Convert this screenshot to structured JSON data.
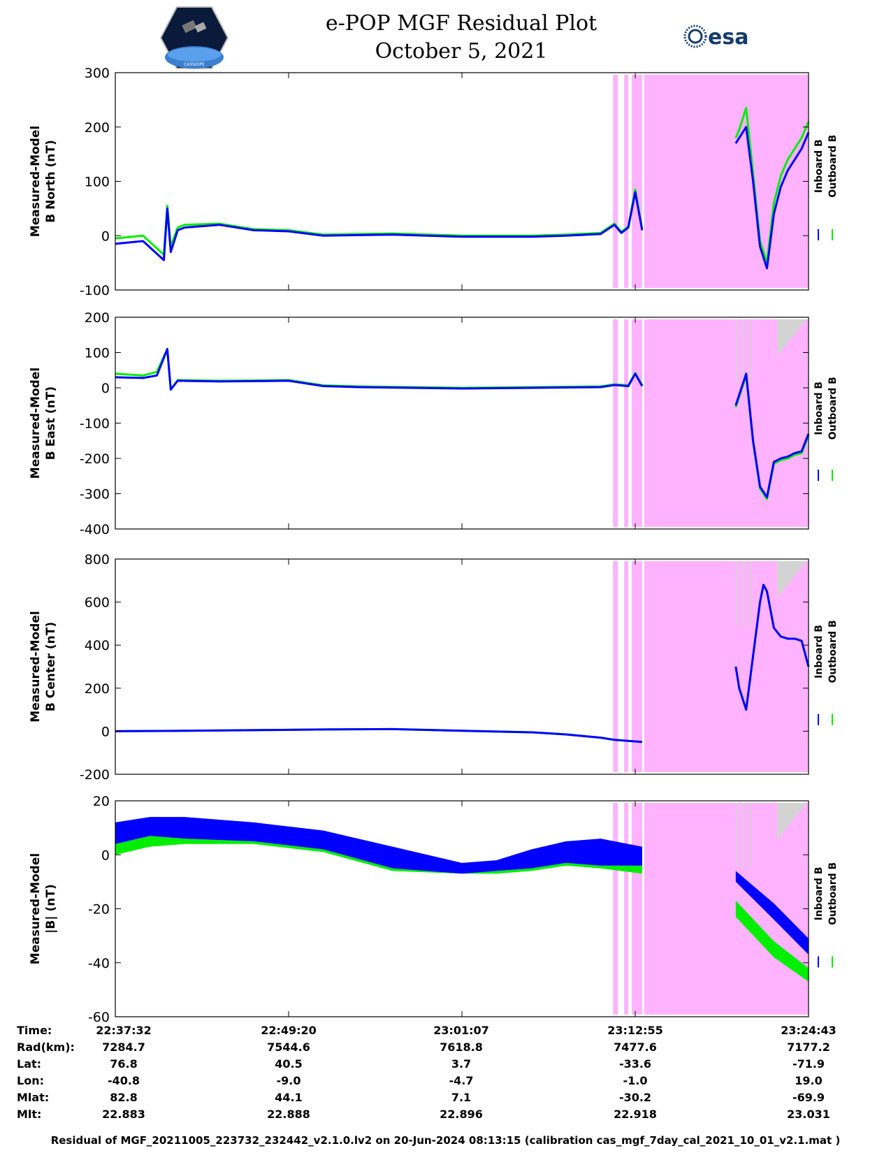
{
  "header": {
    "title_line1": "e-POP MGF Residual Plot",
    "title_line2": "October 5, 2021",
    "logo_left": "CASSIOPE",
    "logo_right": "esa"
  },
  "colors": {
    "inboard": "#0000ff",
    "outboard": "#00ee00",
    "gap_shading": "#ffb3ff",
    "gray_shading": "#d3d3d3"
  },
  "legend": {
    "inboard": "Inboard B",
    "outboard": "Outboard B"
  },
  "chart_data": [
    {
      "type": "line",
      "ylabel": [
        "Measured-Model",
        "B North (nT)"
      ],
      "ylim": [
        -100,
        300
      ],
      "yticks": [
        300,
        200,
        100,
        0,
        -100
      ],
      "x_range_frac": [
        0,
        1
      ],
      "series": [
        {
          "name": "Inboard B",
          "x": [
            0,
            0.04,
            0.07,
            0.075,
            0.08,
            0.09,
            0.1,
            0.15,
            0.2,
            0.25,
            0.3,
            0.4,
            0.5,
            0.6,
            0.65,
            0.7,
            0.72,
            0.73,
            0.74,
            0.75,
            0.76
          ],
          "y": [
            -15,
            -10,
            -45,
            50,
            -30,
            10,
            15,
            20,
            10,
            8,
            0,
            2,
            -2,
            -2,
            0,
            3,
            20,
            5,
            15,
            80,
            10
          ]
        },
        {
          "name": "Outboard B",
          "x": [
            0,
            0.04,
            0.07,
            0.075,
            0.08,
            0.09,
            0.1,
            0.15,
            0.2,
            0.25,
            0.3,
            0.4,
            0.5,
            0.6,
            0.65,
            0.7,
            0.72,
            0.73,
            0.74,
            0.75,
            0.76
          ],
          "y": [
            -5,
            0,
            -35,
            55,
            -20,
            15,
            20,
            22,
            12,
            10,
            2,
            4,
            0,
            0,
            2,
            5,
            22,
            7,
            17,
            85,
            12
          ]
        }
      ],
      "series_late": [
        {
          "name": "Inboard B",
          "x": [
            0.895,
            0.9,
            0.91,
            0.92,
            0.93,
            0.94,
            0.95,
            0.96,
            0.97,
            0.98,
            0.99,
            1.0
          ],
          "y": [
            170,
            180,
            200,
            100,
            -20,
            -60,
            40,
            90,
            120,
            140,
            160,
            190
          ]
        },
        {
          "name": "Outboard B",
          "x": [
            0.895,
            0.9,
            0.91,
            0.92,
            0.93,
            0.94,
            0.95,
            0.96,
            0.97,
            0.98,
            0.99,
            1.0
          ],
          "y": [
            180,
            195,
            235,
            115,
            -10,
            -50,
            60,
            110,
            140,
            160,
            180,
            210
          ]
        }
      ]
    },
    {
      "type": "line",
      "ylabel": [
        "Measured-Model",
        "B East (nT)"
      ],
      "ylim": [
        -400,
        200
      ],
      "yticks": [
        200,
        100,
        0,
        -100,
        -200,
        -300,
        -400
      ],
      "series": [
        {
          "name": "Inboard B",
          "x": [
            0,
            0.04,
            0.06,
            0.075,
            0.08,
            0.09,
            0.15,
            0.25,
            0.3,
            0.35,
            0.5,
            0.7,
            0.72,
            0.74,
            0.75,
            0.76
          ],
          "y": [
            30,
            28,
            35,
            110,
            -5,
            20,
            18,
            20,
            5,
            2,
            -2,
            2,
            8,
            5,
            40,
            5
          ]
        },
        {
          "name": "Outboard B",
          "x": [
            0,
            0.04,
            0.06,
            0.075,
            0.08,
            0.09,
            0.15,
            0.25,
            0.3,
            0.35,
            0.5,
            0.7,
            0.72,
            0.74,
            0.75,
            0.76
          ],
          "y": [
            40,
            35,
            45,
            110,
            -5,
            22,
            20,
            22,
            7,
            4,
            0,
            4,
            10,
            7,
            42,
            7
          ]
        }
      ],
      "series_late": [
        {
          "name": "Inboard B",
          "x": [
            0.895,
            0.905,
            0.91,
            0.92,
            0.93,
            0.94,
            0.95,
            0.96,
            0.97,
            0.98,
            0.99,
            1.0
          ],
          "y": [
            -50,
            10,
            40,
            -150,
            -280,
            -310,
            -210,
            -200,
            -195,
            -185,
            -180,
            -130
          ]
        },
        {
          "name": "Outboard B",
          "x": [
            0.895,
            0.905,
            0.91,
            0.92,
            0.93,
            0.94,
            0.95,
            0.96,
            0.97,
            0.98,
            0.99,
            1.0
          ],
          "y": [
            -55,
            5,
            35,
            -155,
            -285,
            -315,
            -215,
            -205,
            -200,
            -190,
            -185,
            -135
          ]
        }
      ]
    },
    {
      "type": "line",
      "ylabel": [
        "Measured-Model",
        "B Center (nT)"
      ],
      "ylim": [
        -200,
        800
      ],
      "yticks": [
        800,
        600,
        400,
        200,
        0,
        -200
      ],
      "series": [
        {
          "name": "Inboard B",
          "x": [
            0,
            0.1,
            0.2,
            0.3,
            0.4,
            0.5,
            0.6,
            0.65,
            0.7,
            0.72,
            0.74,
            0.76
          ],
          "y": [
            0,
            2,
            5,
            8,
            10,
            2,
            -5,
            -15,
            -30,
            -40,
            -45,
            -50
          ]
        },
        {
          "name": "Outboard B",
          "x": [
            0,
            0.1,
            0.2,
            0.3,
            0.4,
            0.5,
            0.6,
            0.65,
            0.7,
            0.72,
            0.74,
            0.76
          ],
          "y": [
            0,
            2,
            5,
            8,
            10,
            2,
            -5,
            -15,
            -30,
            -40,
            -45,
            -50
          ]
        }
      ],
      "series_late": [
        {
          "name": "Inboard B",
          "x": [
            0.895,
            0.9,
            0.905,
            0.91,
            0.92,
            0.93,
            0.935,
            0.94,
            0.95,
            0.96,
            0.97,
            0.98,
            0.99,
            1.0
          ],
          "y": [
            300,
            200,
            150,
            100,
            350,
            600,
            680,
            650,
            480,
            440,
            430,
            430,
            420,
            300
          ]
        },
        {
          "name": "Outboard B",
          "x": [
            0.895,
            0.9,
            0.905,
            0.91,
            0.92,
            0.93,
            0.935,
            0.94,
            0.95,
            0.96,
            0.97,
            0.98,
            0.99,
            1.0
          ],
          "y": [
            300,
            200,
            150,
            100,
            350,
            600,
            680,
            650,
            480,
            440,
            430,
            430,
            420,
            300
          ]
        }
      ]
    },
    {
      "type": "area",
      "ylabel": [
        "Measured-Model",
        "|B| (nT)"
      ],
      "ylim": [
        -60,
        20
      ],
      "yticks": [
        20,
        0,
        -20,
        -40,
        -60
      ],
      "band": [
        {
          "name": "Inboard B",
          "x": [
            0,
            0.05,
            0.1,
            0.2,
            0.3,
            0.4,
            0.5,
            0.55,
            0.6,
            0.65,
            0.7,
            0.76
          ],
          "upper": [
            12,
            14,
            14,
            12,
            9,
            3,
            -3,
            -2,
            2,
            5,
            6,
            3
          ],
          "lower": [
            4,
            7,
            6,
            5,
            2,
            -5,
            -7,
            -6,
            -5,
            -3,
            -4,
            -4
          ]
        },
        {
          "name": "Outboard B",
          "x": [
            0,
            0.05,
            0.1,
            0.2,
            0.3,
            0.4,
            0.5,
            0.55,
            0.6,
            0.65,
            0.7,
            0.76
          ],
          "upper": [
            4,
            7,
            6,
            5,
            2,
            -5,
            -7,
            -6,
            -5,
            -3,
            -4,
            -4
          ],
          "lower": [
            0,
            3,
            4,
            4,
            1,
            -6,
            -7,
            -7,
            -6,
            -4,
            -5,
            -7
          ]
        }
      ],
      "band_late": [
        {
          "name": "Inboard B",
          "x": [
            0.895,
            0.95,
            1.0
          ],
          "upper": [
            -6,
            -18,
            -31
          ],
          "lower": [
            -10,
            -24,
            -37
          ]
        },
        {
          "name": "Outboard B",
          "x": [
            0.895,
            0.95,
            1.0
          ],
          "upper": [
            -17,
            -32,
            -42
          ],
          "lower": [
            -23,
            -38,
            -47
          ]
        }
      ]
    }
  ],
  "info": {
    "labels": [
      "Time:",
      "Rad(km):",
      "Lat:",
      "Lon:",
      "Mlat:",
      "Mlt:"
    ],
    "columns": [
      [
        "22:37:32",
        "7284.7",
        "76.8",
        "-40.8",
        "82.8",
        "22.883"
      ],
      [
        "22:49:20",
        "7544.6",
        "40.5",
        "-9.0",
        "44.1",
        "22.888"
      ],
      [
        "23:01:07",
        "7618.8",
        "3.7",
        "-4.7",
        "7.1",
        "22.896"
      ],
      [
        "23:12:55",
        "7477.6",
        "-33.6",
        "-1.0",
        "-30.2",
        "22.918"
      ],
      [
        "23:24:43",
        "7177.2",
        "-71.9",
        "19.0",
        "-69.9",
        "23.031"
      ]
    ]
  },
  "footer": "Residual of MGF_20211005_223732_232442_v2.1.0.lv2 on 20-Jun-2024 08:13:15 (calibration cas_mgf_7day_cal_2021_10_01_v2.1.mat )"
}
